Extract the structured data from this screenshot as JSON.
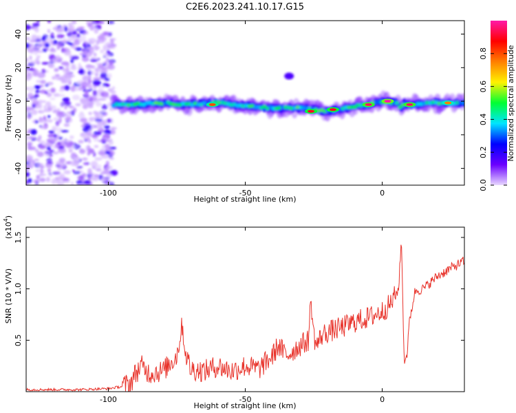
{
  "title": "C2E6.2023.241.10.17.G15",
  "chart_data": [
    {
      "type": "heatmap",
      "xlabel": "Height of straight line (km)",
      "ylabel": "Frequency (Hz)",
      "xlim": [
        -130,
        30
      ],
      "ylim": [
        -50,
        48
      ],
      "xticks": [
        -100,
        -50,
        0
      ],
      "yticks": [
        -40,
        -20,
        0,
        20,
        40
      ],
      "grid": false,
      "colorbar": {
        "label": "Normalized spectral amplitude",
        "range": [
          0.0,
          1.0
        ],
        "ticks": [
          0.0,
          0.2,
          0.4,
          0.6,
          0.8
        ],
        "colormap": [
          "#e8d8ff",
          "#6a00ff",
          "#0000ff",
          "#00e5ff",
          "#00ff33",
          "#fff200",
          "#ff7f00",
          "#ff0000",
          "#ff1aa8"
        ]
      },
      "noise_region": {
        "x": [
          -130,
          -98
        ],
        "y": [
          -50,
          48
        ]
      },
      "band_center": {
        "x": [
          -98,
          -90,
          -80,
          -70,
          -60,
          -50,
          -40,
          -30,
          -20,
          -10,
          -5,
          0,
          5,
          7,
          8,
          10,
          20,
          30
        ],
        "y": [
          -2,
          -2,
          -1,
          -2,
          -1,
          -3,
          -4,
          -4,
          -6,
          -3,
          -2,
          0,
          -1,
          -4,
          -1,
          -2,
          -1,
          -1
        ]
      },
      "band_peaks": [
        {
          "x": -62,
          "y": -2,
          "amp": 0.8
        },
        {
          "x": -26,
          "y": -6,
          "amp": 0.9
        },
        {
          "x": -18,
          "y": -5,
          "amp": 0.9
        },
        {
          "x": -5,
          "y": -2,
          "amp": 0.95
        },
        {
          "x": 2,
          "y": 0,
          "amp": 1.0
        },
        {
          "x": 10,
          "y": -2,
          "amp": 0.95
        },
        {
          "x": 24,
          "y": -1,
          "amp": 0.75
        }
      ],
      "side_blob": {
        "x": -34,
        "y": 15
      }
    },
    {
      "type": "line",
      "xlabel": "Height of straight line (km)",
      "ylabel": "SNR (10 * V/V)",
      "y_multiplier": "(x10^4)",
      "xlim": [
        -130,
        30
      ],
      "ylim": [
        0,
        1.6
      ],
      "xticks": [
        -100,
        -50,
        0
      ],
      "yticks": [
        0.5,
        1.0,
        1.5
      ],
      "ytick_labels": [
        "0.5",
        "1.0",
        "1.5"
      ],
      "grid": false,
      "series": [
        {
          "color": "#e8322a",
          "x": [
            -130,
            -120,
            -110,
            -100,
            -95,
            -92,
            -90,
            -88,
            -85,
            -80,
            -75,
            -73,
            -72,
            -70,
            -65,
            -60,
            -55,
            -50,
            -45,
            -40,
            -38,
            -35,
            -30,
            -27,
            -26,
            -25,
            -24,
            -22,
            -20,
            -15,
            -10,
            -5,
            0,
            3,
            6,
            7,
            8,
            9,
            10,
            12,
            15,
            20,
            25,
            30
          ],
          "y": [
            0.02,
            0.02,
            0.02,
            0.03,
            0.05,
            0.08,
            0.18,
            0.25,
            0.18,
            0.2,
            0.35,
            0.65,
            0.4,
            0.22,
            0.2,
            0.25,
            0.2,
            0.25,
            0.22,
            0.35,
            0.45,
            0.35,
            0.45,
            0.5,
            0.9,
            0.55,
            0.45,
            0.55,
            0.58,
            0.62,
            0.68,
            0.72,
            0.78,
            0.85,
            1.0,
            1.5,
            0.3,
            0.35,
            0.7,
            0.98,
            1.0,
            1.12,
            1.2,
            1.27
          ]
        }
      ]
    }
  ]
}
